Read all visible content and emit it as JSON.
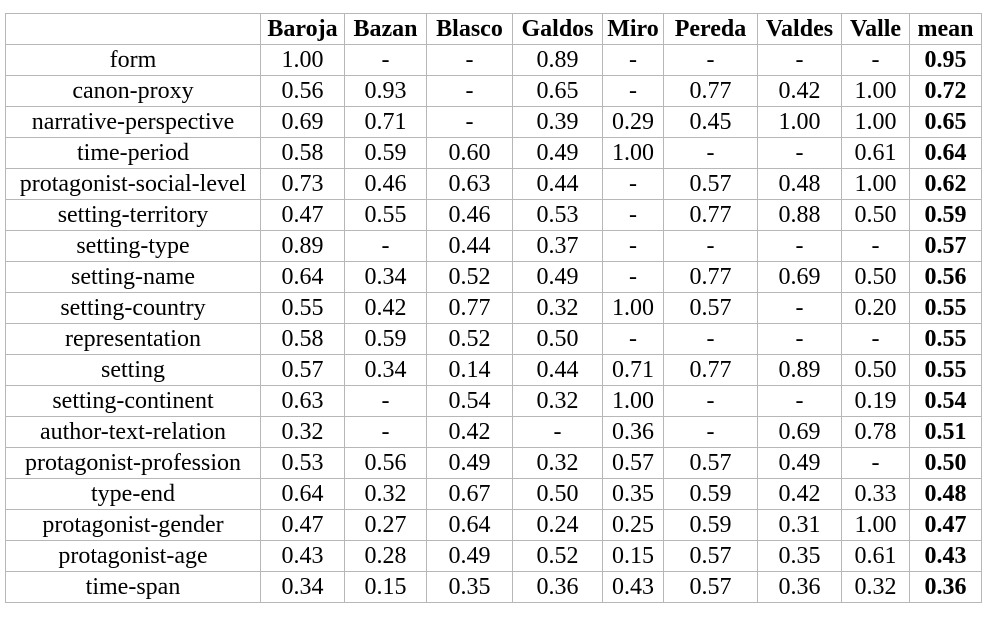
{
  "table": {
    "headers": [
      "",
      "Baroja",
      "Bazan",
      "Blasco",
      "Galdos",
      "Miro",
      "Pereda",
      "Valdes",
      "Valle",
      "mean"
    ],
    "rows": [
      {
        "feature": "form",
        "values": [
          "1.00",
          "-",
          "-",
          "0.89",
          "-",
          "-",
          "-",
          "-"
        ],
        "mean": "0.95"
      },
      {
        "feature": "canon-proxy",
        "values": [
          "0.56",
          "0.93",
          "-",
          "0.65",
          "-",
          "0.77",
          "0.42",
          "1.00"
        ],
        "mean": "0.72"
      },
      {
        "feature": "narrative-perspective",
        "values": [
          "0.69",
          "0.71",
          "-",
          "0.39",
          "0.29",
          "0.45",
          "1.00",
          "1.00"
        ],
        "mean": "0.65"
      },
      {
        "feature": "time-period",
        "values": [
          "0.58",
          "0.59",
          "0.60",
          "0.49",
          "1.00",
          "-",
          "-",
          "0.61"
        ],
        "mean": "0.64"
      },
      {
        "feature": "protagonist-social-level",
        "values": [
          "0.73",
          "0.46",
          "0.63",
          "0.44",
          "-",
          "0.57",
          "0.48",
          "1.00"
        ],
        "mean": "0.62"
      },
      {
        "feature": "setting-territory",
        "values": [
          "0.47",
          "0.55",
          "0.46",
          "0.53",
          "-",
          "0.77",
          "0.88",
          "0.50"
        ],
        "mean": "0.59"
      },
      {
        "feature": "setting-type",
        "values": [
          "0.89",
          "-",
          "0.44",
          "0.37",
          "-",
          "-",
          "-",
          "-"
        ],
        "mean": "0.57"
      },
      {
        "feature": "setting-name",
        "values": [
          "0.64",
          "0.34",
          "0.52",
          "0.49",
          "-",
          "0.77",
          "0.69",
          "0.50"
        ],
        "mean": "0.56"
      },
      {
        "feature": "setting-country",
        "values": [
          "0.55",
          "0.42",
          "0.77",
          "0.32",
          "1.00",
          "0.57",
          "-",
          "0.20"
        ],
        "mean": "0.55"
      },
      {
        "feature": "representation",
        "values": [
          "0.58",
          "0.59",
          "0.52",
          "0.50",
          "-",
          "-",
          "-",
          "-"
        ],
        "mean": "0.55"
      },
      {
        "feature": "setting",
        "values": [
          "0.57",
          "0.34",
          "0.14",
          "0.44",
          "0.71",
          "0.77",
          "0.89",
          "0.50"
        ],
        "mean": "0.55"
      },
      {
        "feature": "setting-continent",
        "values": [
          "0.63",
          "-",
          "0.54",
          "0.32",
          "1.00",
          "-",
          "-",
          "0.19"
        ],
        "mean": "0.54"
      },
      {
        "feature": "author-text-relation",
        "values": [
          "0.32",
          "-",
          "0.42",
          "-",
          "0.36",
          "-",
          "0.69",
          "0.78"
        ],
        "mean": "0.51"
      },
      {
        "feature": "protagonist-profession",
        "values": [
          "0.53",
          "0.56",
          "0.49",
          "0.32",
          "0.57",
          "0.57",
          "0.49",
          "-"
        ],
        "mean": "0.50"
      },
      {
        "feature": "type-end",
        "values": [
          "0.64",
          "0.32",
          "0.67",
          "0.50",
          "0.35",
          "0.59",
          "0.42",
          "0.33"
        ],
        "mean": "0.48"
      },
      {
        "feature": "protagonist-gender",
        "values": [
          "0.47",
          "0.27",
          "0.64",
          "0.24",
          "0.25",
          "0.59",
          "0.31",
          "1.00"
        ],
        "mean": "0.47"
      },
      {
        "feature": "protagonist-age",
        "values": [
          "0.43",
          "0.28",
          "0.49",
          "0.52",
          "0.15",
          "0.57",
          "0.35",
          "0.61"
        ],
        "mean": "0.43"
      },
      {
        "feature": "time-span",
        "values": [
          "0.34",
          "0.15",
          "0.35",
          "0.36",
          "0.43",
          "0.57",
          "0.36",
          "0.32"
        ],
        "mean": "0.36"
      }
    ]
  }
}
